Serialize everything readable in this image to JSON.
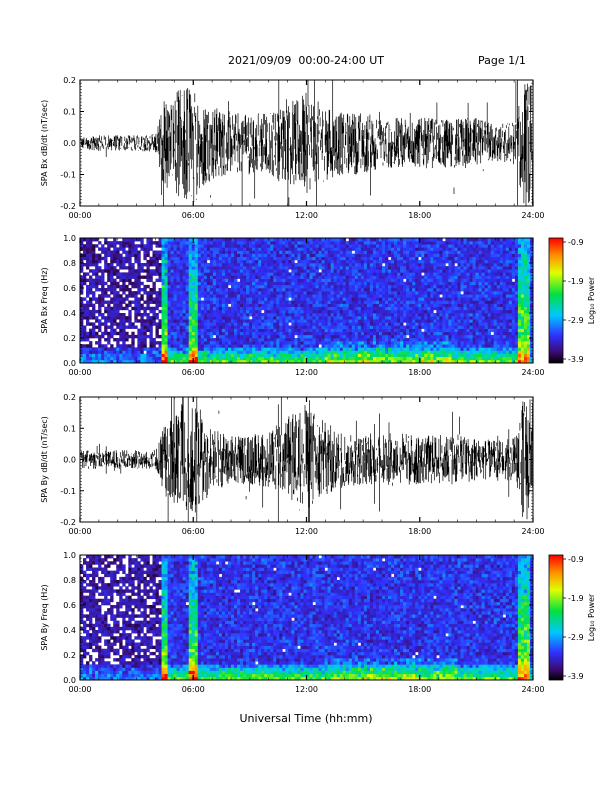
{
  "header": {
    "date_range": "2021/09/09  00:00-24:00 UT",
    "page": "Page 1/1"
  },
  "x_axis": {
    "title": "Universal Time (hh:mm)",
    "ticks": [
      "00:00",
      "06:00",
      "12:00",
      "18:00",
      "24:00"
    ]
  },
  "chart_data": [
    {
      "type": "line",
      "ylabel": "SPA Bx dB/dt (nT/sec)",
      "xlim": [
        0,
        24
      ],
      "ylim": [
        -0.2,
        0.2
      ],
      "yticks": [
        "-0.2",
        "-0.1",
        "0.0",
        "0.1",
        "0.2"
      ],
      "series": [
        {
          "x": [
            0,
            1,
            2,
            3,
            4,
            4.5,
            5,
            5.5,
            6,
            6.5,
            7,
            8,
            9,
            10,
            11,
            12,
            13,
            14,
            15,
            16,
            17,
            18,
            19,
            20,
            21,
            22,
            23,
            23.5,
            24
          ],
          "envelope": [
            0.02,
            0.025,
            0.025,
            0.025,
            0.03,
            0.15,
            0.15,
            0.2,
            0.2,
            0.14,
            0.12,
            0.1,
            0.1,
            0.1,
            0.13,
            0.16,
            0.12,
            0.1,
            0.1,
            0.08,
            0.08,
            0.08,
            0.08,
            0.08,
            0.08,
            0.06,
            0.07,
            0.2,
            0.2
          ]
        }
      ]
    },
    {
      "type": "heatmap",
      "ylabel": "SPA Bx Freq (Hz)",
      "colorbar_label": "Log₁₀ Power",
      "colorbar_ticks": [
        "-0.9",
        "-1.9",
        "-2.9",
        "-3.9"
      ],
      "zlim": [
        -3.9,
        -0.9
      ],
      "xlim": [
        0,
        24
      ],
      "ylim": [
        0,
        1
      ],
      "yticks": [
        "0.0",
        "0.2",
        "0.4",
        "0.6",
        "0.8",
        "1.0"
      ]
    },
    {
      "type": "line",
      "ylabel": "SPA By dB/dt (nT/sec)",
      "xlim": [
        0,
        24
      ],
      "ylim": [
        -0.2,
        0.2
      ],
      "yticks": [
        "-0.2",
        "-0.1",
        "0.0",
        "0.1",
        "0.2"
      ],
      "series": [
        {
          "x": [
            0,
            1,
            2,
            3,
            4,
            4.5,
            5,
            5.5,
            6,
            6.5,
            7,
            8,
            9,
            10,
            11,
            12,
            13,
            14,
            15,
            16,
            17,
            18,
            19,
            20,
            21,
            22,
            23,
            23.5,
            24
          ],
          "envelope": [
            0.03,
            0.03,
            0.03,
            0.03,
            0.03,
            0.12,
            0.14,
            0.2,
            0.2,
            0.15,
            0.1,
            0.08,
            0.08,
            0.09,
            0.14,
            0.18,
            0.12,
            0.09,
            0.08,
            0.08,
            0.09,
            0.08,
            0.08,
            0.08,
            0.07,
            0.06,
            0.07,
            0.2,
            0.2
          ]
        }
      ]
    },
    {
      "type": "heatmap",
      "ylabel": "SPA By Freq (Hz)",
      "colorbar_label": "Log₁₀ Power",
      "colorbar_ticks": [
        "-0.9",
        "-1.9",
        "-2.9",
        "-3.9"
      ],
      "zlim": [
        -3.9,
        -0.9
      ],
      "xlim": [
        0,
        24
      ],
      "ylim": [
        0,
        1
      ],
      "yticks": [
        "0.0",
        "0.2",
        "0.4",
        "0.6",
        "0.8",
        "1.0"
      ]
    }
  ]
}
